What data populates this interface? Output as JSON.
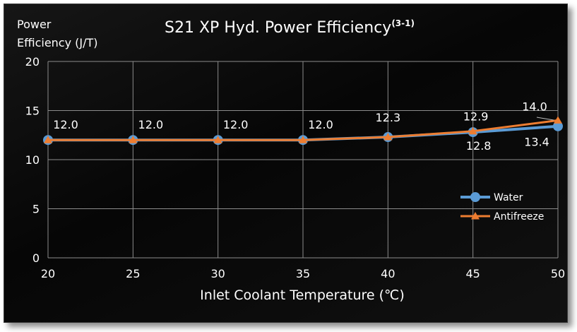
{
  "chart_data": {
    "type": "line",
    "title": "S21 XP Hyd. Power Efficiency",
    "title_superscript": "(3-1)",
    "ylabel_lines": [
      "Power",
      "Efficiency (J/T)"
    ],
    "xlabel": "Inlet Coolant Temperature (℃)",
    "x": [
      20,
      25,
      30,
      35,
      40,
      45,
      50
    ],
    "xlim": [
      20,
      50
    ],
    "ylim": [
      0,
      20
    ],
    "x_ticks": [
      "20",
      "25",
      "30",
      "35",
      "40",
      "45",
      "50"
    ],
    "y_ticks": [
      "0",
      "5",
      "10",
      "15",
      "20"
    ],
    "grid": true,
    "legend_position": "right",
    "series": [
      {
        "name": "Water",
        "values": [
          12.0,
          12.0,
          12.0,
          12.0,
          12.3,
          12.8,
          13.4
        ],
        "color": "#5b9bd5",
        "marker": "circle",
        "labels": [
          "12.0",
          "12.0",
          "12.0",
          "12.0",
          "12.3",
          "12.8",
          "13.4"
        ]
      },
      {
        "name": "Antifreeze",
        "values": [
          12.0,
          12.0,
          12.0,
          12.0,
          12.3,
          12.9,
          14.0
        ],
        "color": "#ed7d31",
        "marker": "triangle",
        "labels": [
          "",
          "",
          "",
          "",
          "",
          "12.9",
          "14.0"
        ]
      }
    ]
  }
}
